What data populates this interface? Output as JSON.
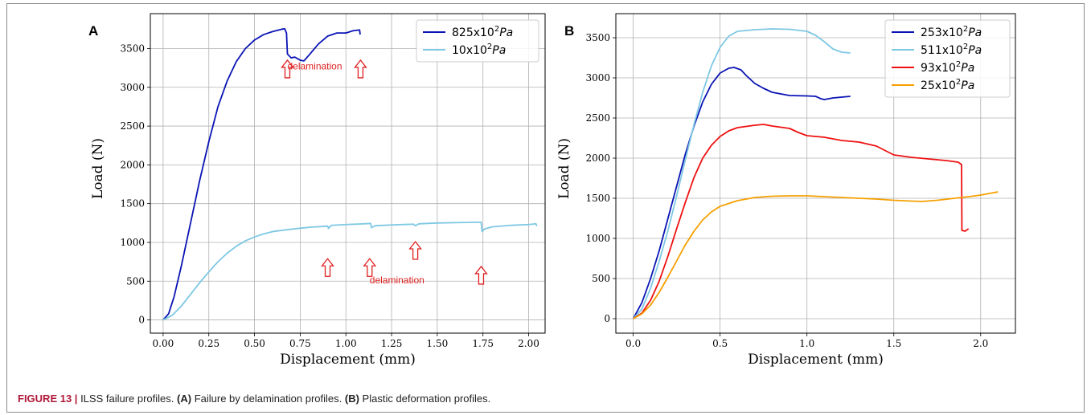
{
  "caption": {
    "label": "FIGURE 13 |",
    "title": "ILSS failure profiles.",
    "part_a_tag": "(A)",
    "part_a_text": "Failure by delamination profiles.",
    "part_b_tag": "(B)",
    "part_b_text": "Plastic deformation profiles."
  },
  "colors": {
    "dark_blue": "#0a14b4",
    "light_blue": "#7ec8e3",
    "red": "#ee1111",
    "orange": "#f5a000",
    "annotation": "#e02020"
  },
  "chart_data": [
    {
      "type": "line",
      "panel": "A",
      "title": "",
      "xlabel": "Displacement (mm)",
      "ylabel": "Load (N)",
      "xlim": [
        -0.07,
        2.09
      ],
      "ylim": [
        -170,
        3950
      ],
      "xticks": [
        0.0,
        0.25,
        0.5,
        0.75,
        1.0,
        1.25,
        1.5,
        1.75,
        2.0
      ],
      "xtick_labels": [
        "0.00",
        "0.25",
        "0.50",
        "0.75",
        "1.00",
        "1.25",
        "1.50",
        "1.75",
        "2.00"
      ],
      "yticks": [
        0,
        500,
        1000,
        1500,
        2000,
        2500,
        3000,
        3500
      ],
      "ytick_labels": [
        "0",
        "500",
        "1000",
        "1500",
        "2000",
        "2500",
        "3000",
        "3500"
      ],
      "grid": true,
      "legend_position": "top-right",
      "series": [
        {
          "name_base": "825x10",
          "name_exp": "2",
          "name_unit": "Pa",
          "color": "#0a14b4",
          "points": [
            [
              0,
              0
            ],
            [
              0.03,
              80
            ],
            [
              0.06,
              300
            ],
            [
              0.1,
              700
            ],
            [
              0.15,
              1250
            ],
            [
              0.2,
              1800
            ],
            [
              0.25,
              2300
            ],
            [
              0.3,
              2750
            ],
            [
              0.35,
              3080
            ],
            [
              0.4,
              3330
            ],
            [
              0.45,
              3500
            ],
            [
              0.5,
              3610
            ],
            [
              0.55,
              3680
            ],
            [
              0.6,
              3720
            ],
            [
              0.65,
              3750
            ],
            [
              0.665,
              3755
            ],
            [
              0.675,
              3700
            ],
            [
              0.68,
              3430
            ],
            [
              0.7,
              3380
            ],
            [
              0.72,
              3390
            ],
            [
              0.75,
              3350
            ],
            [
              0.77,
              3340
            ],
            [
              0.8,
              3420
            ],
            [
              0.85,
              3560
            ],
            [
              0.9,
              3660
            ],
            [
              0.95,
              3700
            ],
            [
              1.0,
              3700
            ],
            [
              1.04,
              3730
            ],
            [
              1.075,
              3740
            ],
            [
              1.078,
              3680
            ]
          ]
        },
        {
          "name_base": "10x10",
          "name_exp": "2",
          "name_unit": "Pa",
          "color": "#7ec8e3",
          "points": [
            [
              0,
              0
            ],
            [
              0.05,
              60
            ],
            [
              0.1,
              180
            ],
            [
              0.15,
              330
            ],
            [
              0.2,
              480
            ],
            [
              0.25,
              620
            ],
            [
              0.3,
              750
            ],
            [
              0.35,
              860
            ],
            [
              0.4,
              950
            ],
            [
              0.45,
              1020
            ],
            [
              0.5,
              1070
            ],
            [
              0.55,
              1110
            ],
            [
              0.6,
              1140
            ],
            [
              0.7,
              1170
            ],
            [
              0.8,
              1195
            ],
            [
              0.9,
              1210
            ],
            [
              0.905,
              1180
            ],
            [
              0.92,
              1220
            ],
            [
              1.0,
              1230
            ],
            [
              1.1,
              1240
            ],
            [
              1.135,
              1245
            ],
            [
              1.14,
              1190
            ],
            [
              1.16,
              1215
            ],
            [
              1.25,
              1225
            ],
            [
              1.37,
              1235
            ],
            [
              1.38,
              1215
            ],
            [
              1.4,
              1240
            ],
            [
              1.5,
              1250
            ],
            [
              1.6,
              1255
            ],
            [
              1.72,
              1260
            ],
            [
              1.74,
              1260
            ],
            [
              1.745,
              1140
            ],
            [
              1.76,
              1175
            ],
            [
              1.8,
              1200
            ],
            [
              1.9,
              1220
            ],
            [
              2.0,
              1230
            ],
            [
              2.04,
              1240
            ],
            [
              2.045,
              1210
            ]
          ]
        }
      ],
      "annotations": [
        {
          "text": "delamination",
          "x": 0.68,
          "y": 3230
        },
        {
          "text": "delamination",
          "x": 1.13,
          "y": 470
        }
      ],
      "arrows": [
        [
          0.68,
          3350
        ],
        [
          1.08,
          3350
        ],
        [
          0.9,
          790
        ],
        [
          1.13,
          790
        ],
        [
          1.38,
          1010
        ],
        [
          1.74,
          690
        ]
      ]
    },
    {
      "type": "line",
      "panel": "B",
      "title": "",
      "xlabel": "Displacement (mm)",
      "ylabel": "Load (N)",
      "xlim": [
        -0.1,
        2.2
      ],
      "ylim": [
        -180,
        3800
      ],
      "xticks": [
        0.0,
        0.5,
        1.0,
        1.5,
        2.0
      ],
      "xtick_labels": [
        "0.0",
        "0.5",
        "1.0",
        "1.5",
        "2.0"
      ],
      "yticks": [
        0,
        500,
        1000,
        1500,
        2000,
        2500,
        3000,
        3500
      ],
      "ytick_labels": [
        "0",
        "500",
        "1000",
        "1500",
        "2000",
        "2500",
        "3000",
        "3500"
      ],
      "grid": true,
      "legend_position": "top-right",
      "series": [
        {
          "name_base": "253x10",
          "name_exp": "2",
          "name_unit": "Pa",
          "color": "#0a14b4",
          "points": [
            [
              0,
              0
            ],
            [
              0.05,
              200
            ],
            [
              0.1,
              500
            ],
            [
              0.15,
              850
            ],
            [
              0.2,
              1250
            ],
            [
              0.25,
              1650
            ],
            [
              0.3,
              2050
            ],
            [
              0.35,
              2400
            ],
            [
              0.4,
              2700
            ],
            [
              0.45,
              2920
            ],
            [
              0.5,
              3060
            ],
            [
              0.55,
              3120
            ],
            [
              0.58,
              3130
            ],
            [
              0.62,
              3100
            ],
            [
              0.65,
              3030
            ],
            [
              0.7,
              2930
            ],
            [
              0.75,
              2870
            ],
            [
              0.8,
              2820
            ],
            [
              0.85,
              2800
            ],
            [
              0.9,
              2780
            ],
            [
              1.0,
              2775
            ],
            [
              1.05,
              2770
            ],
            [
              1.08,
              2740
            ],
            [
              1.1,
              2730
            ],
            [
              1.15,
              2750
            ],
            [
              1.2,
              2760
            ],
            [
              1.25,
              2770
            ]
          ]
        },
        {
          "name_base": "511x10",
          "name_exp": "2",
          "name_unit": "Pa",
          "color": "#7ec8e3",
          "points": [
            [
              0,
              0
            ],
            [
              0.05,
              120
            ],
            [
              0.1,
              380
            ],
            [
              0.15,
              720
            ],
            [
              0.2,
              1100
            ],
            [
              0.25,
              1530
            ],
            [
              0.3,
              1980
            ],
            [
              0.35,
              2420
            ],
            [
              0.4,
              2820
            ],
            [
              0.45,
              3150
            ],
            [
              0.5,
              3380
            ],
            [
              0.55,
              3520
            ],
            [
              0.6,
              3580
            ],
            [
              0.7,
              3600
            ],
            [
              0.8,
              3610
            ],
            [
              0.9,
              3605
            ],
            [
              1.0,
              3580
            ],
            [
              1.05,
              3530
            ],
            [
              1.1,
              3450
            ],
            [
              1.15,
              3360
            ],
            [
              1.2,
              3320
            ],
            [
              1.25,
              3310
            ]
          ]
        },
        {
          "name_base": "93x10",
          "name_exp": "2",
          "name_unit": "Pa",
          "color": "#ee1111",
          "points": [
            [
              0,
              0
            ],
            [
              0.05,
              70
            ],
            [
              0.1,
              230
            ],
            [
              0.15,
              470
            ],
            [
              0.2,
              780
            ],
            [
              0.25,
              1120
            ],
            [
              0.3,
              1450
            ],
            [
              0.35,
              1760
            ],
            [
              0.4,
              2000
            ],
            [
              0.45,
              2160
            ],
            [
              0.5,
              2270
            ],
            [
              0.55,
              2340
            ],
            [
              0.6,
              2380
            ],
            [
              0.7,
              2410
            ],
            [
              0.75,
              2420
            ],
            [
              0.8,
              2400
            ],
            [
              0.9,
              2370
            ],
            [
              0.95,
              2320
            ],
            [
              1.0,
              2280
            ],
            [
              1.1,
              2260
            ],
            [
              1.2,
              2220
            ],
            [
              1.3,
              2200
            ],
            [
              1.4,
              2150
            ],
            [
              1.5,
              2040
            ],
            [
              1.6,
              2010
            ],
            [
              1.7,
              1990
            ],
            [
              1.8,
              1970
            ],
            [
              1.87,
              1950
            ],
            [
              1.89,
              1920
            ],
            [
              1.892,
              1100
            ],
            [
              1.91,
              1090
            ],
            [
              1.93,
              1120
            ]
          ]
        },
        {
          "name_base": "25x10",
          "name_exp": "2",
          "name_unit": "Pa",
          "color": "#f5a000",
          "points": [
            [
              0,
              0
            ],
            [
              0.05,
              60
            ],
            [
              0.1,
              170
            ],
            [
              0.15,
              330
            ],
            [
              0.2,
              520
            ],
            [
              0.25,
              720
            ],
            [
              0.3,
              920
            ],
            [
              0.35,
              1090
            ],
            [
              0.4,
              1230
            ],
            [
              0.45,
              1330
            ],
            [
              0.5,
              1400
            ],
            [
              0.6,
              1470
            ],
            [
              0.7,
              1510
            ],
            [
              0.8,
              1525
            ],
            [
              0.9,
              1530
            ],
            [
              1.0,
              1530
            ],
            [
              1.1,
              1520
            ],
            [
              1.2,
              1510
            ],
            [
              1.3,
              1500
            ],
            [
              1.4,
              1490
            ],
            [
              1.5,
              1475
            ],
            [
              1.6,
              1465
            ],
            [
              1.66,
              1460
            ],
            [
              1.75,
              1475
            ],
            [
              1.85,
              1500
            ],
            [
              1.95,
              1525
            ],
            [
              2.0,
              1540
            ],
            [
              2.05,
              1560
            ],
            [
              2.1,
              1580
            ]
          ]
        }
      ],
      "annotations": [],
      "arrows": []
    }
  ]
}
